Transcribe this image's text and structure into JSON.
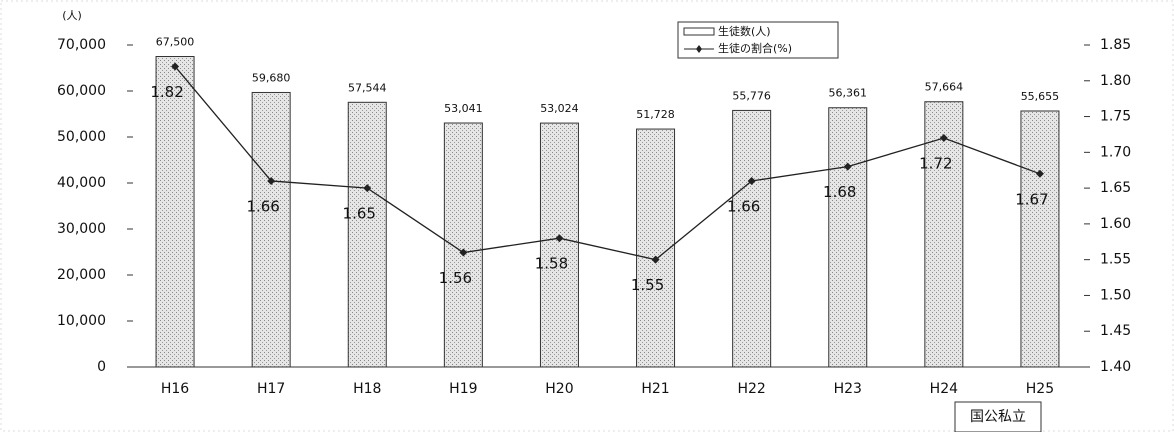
{
  "chart_data": {
    "type": "combo",
    "y_unit_label": "(人)",
    "categories": [
      "H16",
      "H17",
      "H18",
      "H19",
      "H20",
      "H21",
      "H22",
      "H23",
      "H24",
      "H25"
    ],
    "series": [
      {
        "name": "生徒数(人)",
        "type": "bar",
        "color": "#d4d4d4",
        "values": [
          67500,
          59680,
          57544,
          53041,
          53024,
          51728,
          55776,
          56361,
          57664,
          55655
        ],
        "value_labels": [
          "67,500",
          "59,680",
          "57,544",
          "53,041",
          "53,024",
          "51,728",
          "55,776",
          "56,361",
          "57,664",
          "55,655"
        ]
      },
      {
        "name": "生徒の割合(%)",
        "type": "line",
        "axis": "y2",
        "color": "#222222",
        "values": [
          1.82,
          1.66,
          1.65,
          1.56,
          1.58,
          1.55,
          1.66,
          1.68,
          1.72,
          1.67
        ]
      }
    ],
    "ylim": [
      0,
      70000
    ],
    "yticks": [
      0,
      {
        "value": 10000,
        "label": "10,000"
      },
      {
        "value": 20000,
        "label": "20,000"
      },
      {
        "value": 30000,
        "label": "30,000"
      },
      {
        "value": 40000,
        "label": "40,000"
      },
      {
        "value": 50000,
        "label": "50,000"
      },
      {
        "value": 60000,
        "label": "60,000"
      },
      {
        "value": 70000,
        "label": "70,000"
      }
    ],
    "y2lim": [
      1.4,
      1.85
    ],
    "y2ticks": [
      {
        "value": 1.4,
        "label": "1.40"
      },
      1.45,
      {
        "value": 1.5,
        "label": "1.50"
      },
      1.55,
      {
        "value": 1.6,
        "label": "1.60"
      },
      1.65,
      {
        "value": 1.7,
        "label": "1.70"
      },
      1.75,
      {
        "value": 1.8,
        "label": "1.80"
      },
      1.85
    ],
    "footnote": "国公私立"
  }
}
